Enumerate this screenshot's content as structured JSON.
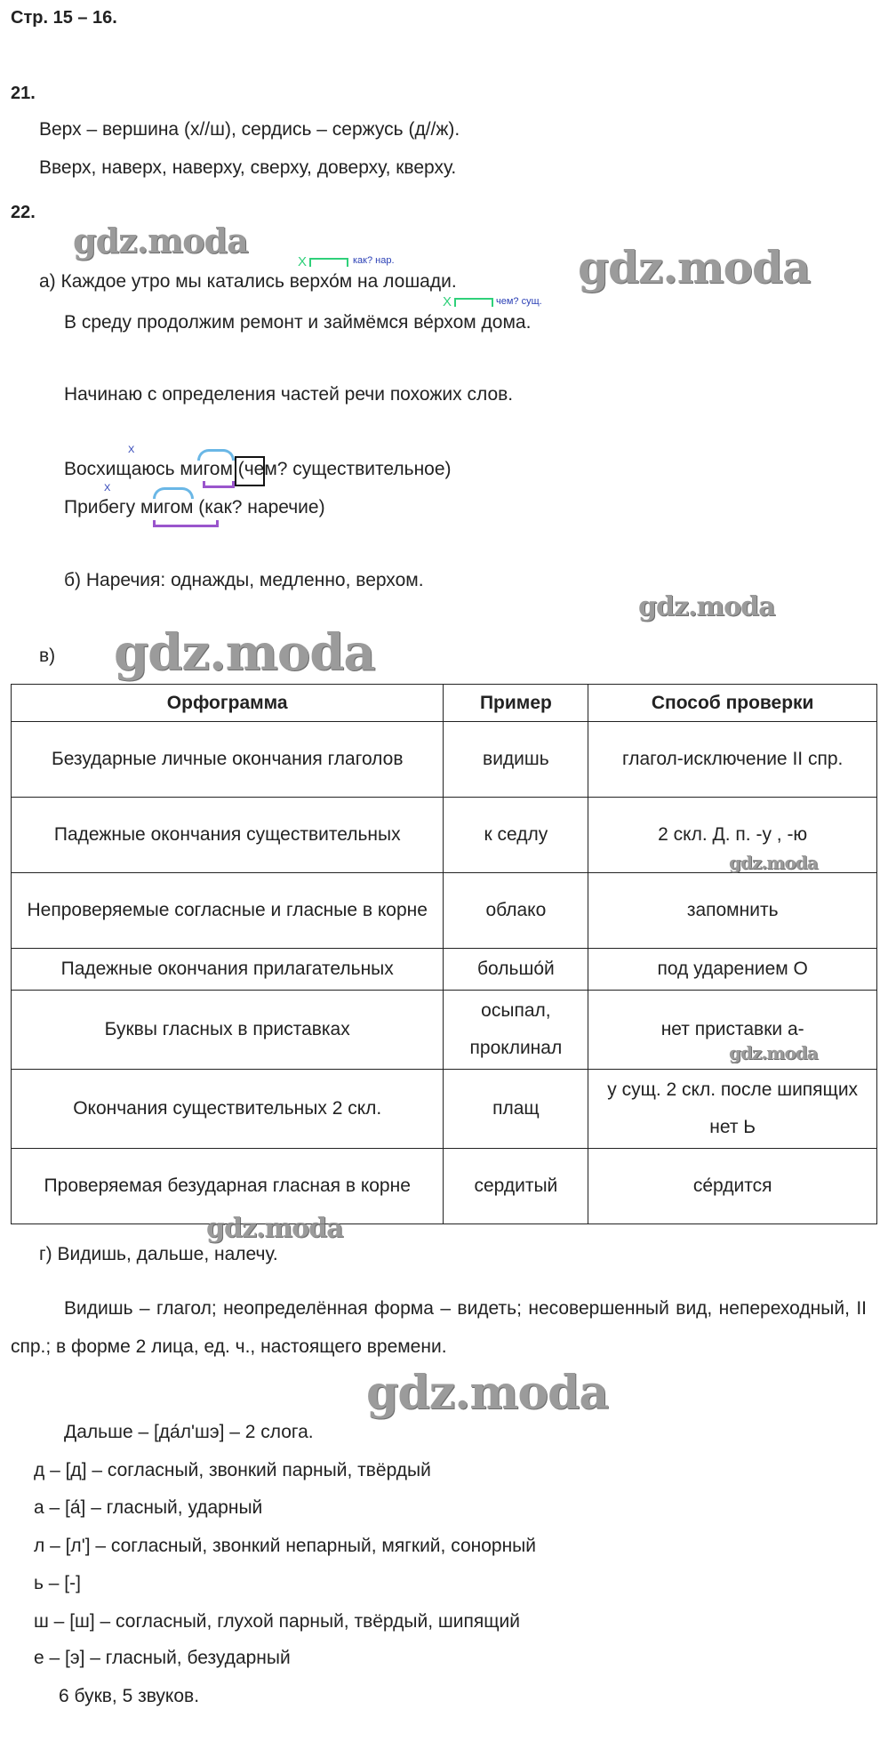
{
  "header": "Стр. 15 – 16.",
  "ex21": {
    "number": "21.",
    "lines": [
      "Верх – вершина (х//ш), сердись – сержусь (д//ж).",
      "Вверх, наверх, наверху, сверху, доверху, кверху."
    ]
  },
  "ex22": {
    "number": "22.",
    "a": {
      "line1": "а) Каждое утро мы катались верхо́м на лошади.",
      "line1_note": "как?  нар.",
      "line2": "В среду продолжим ремонт и займёмся ве́рхом дома.",
      "line2_note": "чем?  сущ.",
      "x_mark": "Х",
      "intro": "Начинаю с определения частей речи похожих слов.",
      "ex1": "Восхищаюсь мигом (чем? существительное)",
      "ex2": "Прибегу мигом (как? наречие)"
    },
    "b": "б) Наречия: однажды, медленно, верхом.",
    "v": {
      "label": "в)",
      "headers": [
        "Орфограмма",
        "Пример",
        "Способ проверки"
      ],
      "rows": [
        [
          "Безударные личные окончания глаголов",
          "видишь",
          "глагол-исключение II спр."
        ],
        [
          "Падежные окончания существительных",
          "к седлу",
          "2 скл. Д. п. -у , -ю"
        ],
        [
          "Непроверяемые согласные и гласные в корне",
          "облако",
          "запомнить"
        ],
        [
          "Падежные окончания прилагательных",
          "большо́й",
          "под ударением О"
        ],
        [
          "Буквы гласных в приставках",
          "осыпал, проклинал",
          "нет приставки а-"
        ],
        [
          "Окончания существительных 2 скл.",
          "плащ",
          "у сущ. 2 скл. после шипящих нет Ь"
        ],
        [
          "Проверяемая безударная гласная в корне",
          "сердитый",
          "се́рдится"
        ]
      ]
    },
    "g": {
      "line": "г) Видишь, дальше, налечу.",
      "para": "Видишь – глагол; неопределённая форма – видеть; несовершенный вид, непереходный, II спр.; в форме 2 лица, ед. ч., настоящего времени.",
      "syllables": "Дальше – [да́л'шэ] – 2 слога.",
      "sounds": [
        "д – [д] – согласный, звонкий парный, твёрдый",
        "а – [а́] – гласный, ударный",
        "л – [л'] – согласный, звонкий непарный, мягкий, сонорный",
        "ь – [-]",
        "ш – [ш] – согласный, глухой парный, твёрдый, шипящий",
        "е – [э] – гласный, безударный"
      ],
      "summary": "6 букв, 5 звуков."
    }
  },
  "watermark": "gdz.moda",
  "colors": {
    "annotation_blue": "#2a3fb5",
    "scheme_green": "#2fd07a",
    "morpheme_purple": "#9a55cc",
    "arc_blue": "#6ab7e6",
    "watermark": "#8a8a8a"
  }
}
